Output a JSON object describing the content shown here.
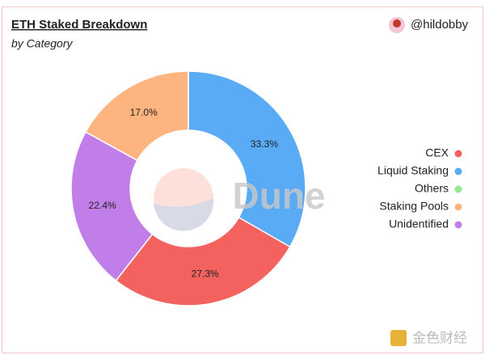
{
  "chart_data": {
    "type": "donut",
    "title": "ETH Staked Breakdown",
    "subtitle": "by Category",
    "author": "@hildobby",
    "watermark": "Dune",
    "footer_watermark": "金色财经",
    "categories": [
      "Liquid Staking",
      "CEX",
      "Unidentified",
      "Staking Pools",
      "Others"
    ],
    "values": [
      33.3,
      27.3,
      22.4,
      17.0,
      0
    ],
    "value_labels": [
      "33.3%",
      "27.3%",
      "22.4%",
      "17.0%",
      null
    ],
    "colors": [
      "#5aabf6",
      "#f4625f",
      "#c27ee8",
      "#fdb47f",
      "#8fea8f"
    ],
    "legend": "right"
  }
}
